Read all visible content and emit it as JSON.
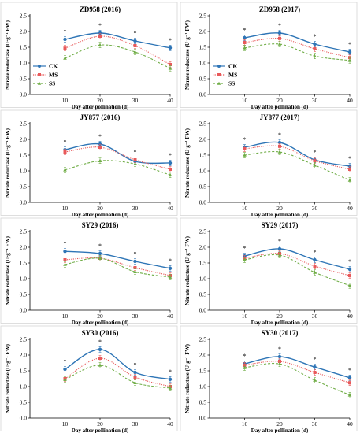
{
  "figure": {
    "colors": {
      "CK": "#2E75B6",
      "MS": "#E8595A",
      "SS": "#70AD47"
    }
  },
  "chart_data": [
    {
      "type": "line",
      "title": "ZD958 (2016)",
      "xlabel": "Day after pollination (d)",
      "ylabel": "Nitrate reductase (U·g⁻¹ FW)",
      "x": [
        10,
        20,
        30,
        40
      ],
      "xlim": [
        0,
        40
      ],
      "ylim": [
        0,
        2.5
      ],
      "yticks": [
        "0.0",
        "0.5",
        "1.0",
        "1.5",
        "2.0",
        "2.5"
      ],
      "xticks": [
        "10",
        "20",
        "30",
        "40"
      ],
      "grid": false,
      "legend": {
        "position": "left",
        "entries": [
          "CK",
          "MS",
          "SS"
        ]
      },
      "significance": [
        "*",
        "*",
        "*",
        "*"
      ],
      "series": [
        {
          "name": "CK",
          "values": [
            1.75,
            1.95,
            1.7,
            1.48
          ],
          "style": "solid",
          "marker": "circle"
        },
        {
          "name": "MS",
          "values": [
            1.47,
            1.85,
            1.55,
            0.95
          ],
          "style": "dotted",
          "marker": "square"
        },
        {
          "name": "SS",
          "values": [
            1.15,
            1.57,
            1.35,
            0.83
          ],
          "style": "dashed",
          "marker": "triangle"
        }
      ]
    },
    {
      "type": "line",
      "title": "ZD958 (2017)",
      "xlabel": "Day after pollination (d)",
      "ylabel": "Nitrate reductase (U·g⁻¹ FW)",
      "x": [
        10,
        20,
        30,
        40
      ],
      "xlim": [
        0,
        40
      ],
      "ylim": [
        0,
        2.5
      ],
      "yticks": [
        "0.0",
        "0.5",
        "1.0",
        "1.5",
        "2.0",
        "2.5"
      ],
      "xticks": [
        "10",
        "20",
        "30",
        "40"
      ],
      "grid": false,
      "legend": {
        "position": "left",
        "entries": [
          "CK",
          "MS",
          "SS"
        ]
      },
      "significance": [
        "*",
        "*",
        "*",
        "*"
      ],
      "series": [
        {
          "name": "CK",
          "values": [
            1.8,
            1.95,
            1.6,
            1.35
          ],
          "style": "solid",
          "marker": "circle"
        },
        {
          "name": "MS",
          "values": [
            1.65,
            1.78,
            1.45,
            1.17
          ],
          "style": "dotted",
          "marker": "square"
        },
        {
          "name": "SS",
          "values": [
            1.48,
            1.6,
            1.22,
            1.08
          ],
          "style": "dashed",
          "marker": "triangle"
        }
      ]
    },
    {
      "type": "line",
      "title": "JY877 (2016)",
      "xlabel": "Day after pollination (d)",
      "ylabel": "Nitrate reductase (U·g⁻¹ FW)",
      "x": [
        10,
        20,
        30,
        40
      ],
      "xlim": [
        0,
        40
      ],
      "ylim": [
        0,
        2.5
      ],
      "yticks": [
        "0.0",
        "0.5",
        "1.0",
        "1.5",
        "2.0",
        "2.5"
      ],
      "xticks": [
        "10",
        "20",
        "30",
        "40"
      ],
      "grid": false,
      "significance": [
        "*",
        "*",
        "*",
        "*"
      ],
      "series": [
        {
          "name": "CK",
          "values": [
            1.67,
            1.85,
            1.3,
            1.25
          ],
          "style": "solid",
          "marker": "circle"
        },
        {
          "name": "MS",
          "values": [
            1.6,
            1.75,
            1.35,
            1.05
          ],
          "style": "dotted",
          "marker": "square"
        },
        {
          "name": "SS",
          "values": [
            1.03,
            1.32,
            1.22,
            0.87
          ],
          "style": "dashed",
          "marker": "triangle"
        }
      ]
    },
    {
      "type": "line",
      "title": "JY877 (2017)",
      "xlabel": "Day after pollination (d)",
      "ylabel": "Nitrate reductase (U·g⁻¹ FW)",
      "x": [
        10,
        20,
        30,
        40
      ],
      "xlim": [
        0,
        40
      ],
      "ylim": [
        0,
        2.5
      ],
      "yticks": [
        "0.0",
        "0.5",
        "1.0",
        "1.5",
        "2.0",
        "2.5"
      ],
      "xticks": [
        "10",
        "20",
        "30",
        "40"
      ],
      "grid": false,
      "significance": [
        "*",
        "*",
        "*",
        "*"
      ],
      "series": [
        {
          "name": "CK",
          "values": [
            1.75,
            1.9,
            1.35,
            1.15
          ],
          "style": "solid",
          "marker": "circle"
        },
        {
          "name": "MS",
          "values": [
            1.7,
            1.78,
            1.32,
            1.05
          ],
          "style": "dotted",
          "marker": "square"
        },
        {
          "name": "SS",
          "values": [
            1.5,
            1.6,
            1.18,
            0.7
          ],
          "style": "dashed",
          "marker": "triangle"
        }
      ]
    },
    {
      "type": "line",
      "title": "SY29 (2016)",
      "xlabel": "Day after pollination (d)",
      "ylabel": "Nitrate reductase (U·g⁻¹ FW)",
      "x": [
        10,
        20,
        30,
        40
      ],
      "xlim": [
        0,
        40
      ],
      "ylim": [
        0,
        2.5
      ],
      "yticks": [
        "0.0",
        "0.5",
        "1.0",
        "1.5",
        "2.0",
        "2.5"
      ],
      "xticks": [
        "10",
        "20",
        "30",
        "40"
      ],
      "grid": false,
      "significance": [
        "*",
        "*",
        "*",
        "*"
      ],
      "series": [
        {
          "name": "CK",
          "values": [
            1.87,
            1.8,
            1.55,
            1.33
          ],
          "style": "solid",
          "marker": "circle"
        },
        {
          "name": "MS",
          "values": [
            1.6,
            1.65,
            1.35,
            1.1
          ],
          "style": "dotted",
          "marker": "square"
        },
        {
          "name": "SS",
          "values": [
            1.45,
            1.65,
            1.22,
            1.05
          ],
          "style": "dashed",
          "marker": "triangle"
        }
      ]
    },
    {
      "type": "line",
      "title": "SY29 (2017)",
      "xlabel": "Day after pollination (d)",
      "ylabel": "Nitrate reductase (U·g⁻¹ FW)",
      "x": [
        10,
        20,
        30,
        40
      ],
      "xlim": [
        0,
        40
      ],
      "ylim": [
        0,
        2.5
      ],
      "yticks": [
        "0.0",
        "0.5",
        "1.0",
        "1.5",
        "2.0",
        "2.5"
      ],
      "xticks": [
        "10",
        "20",
        "30",
        "40"
      ],
      "grid": false,
      "significance": [
        "*",
        "*",
        "*",
        "*"
      ],
      "series": [
        {
          "name": "CK",
          "values": [
            1.72,
            1.95,
            1.6,
            1.3
          ],
          "style": "solid",
          "marker": "circle"
        },
        {
          "name": "MS",
          "values": [
            1.65,
            1.8,
            1.4,
            1.1
          ],
          "style": "dotted",
          "marker": "square"
        },
        {
          "name": "SS",
          "values": [
            1.6,
            1.75,
            1.2,
            0.78
          ],
          "style": "dashed",
          "marker": "triangle"
        }
      ]
    },
    {
      "type": "line",
      "title": "SY30 (2016)",
      "xlabel": "Day after pollination (d)",
      "ylabel": "Nitrate reductase (U·g⁻¹ FW)",
      "x": [
        10,
        20,
        30,
        40
      ],
      "xlim": [
        0,
        40
      ],
      "ylim": [
        0,
        2.5
      ],
      "yticks": [
        "0.0",
        "0.5",
        "1.0",
        "1.5",
        "2.0",
        "2.5"
      ],
      "xticks": [
        "10",
        "20",
        "30",
        "40"
      ],
      "grid": false,
      "significance": [
        "*",
        "*",
        "*",
        "*"
      ],
      "series": [
        {
          "name": "CK",
          "values": [
            1.55,
            2.18,
            1.45,
            1.23
          ],
          "style": "solid",
          "marker": "circle"
        },
        {
          "name": "MS",
          "values": [
            1.25,
            1.9,
            1.3,
            1.0
          ],
          "style": "dotted",
          "marker": "square"
        },
        {
          "name": "SS",
          "values": [
            1.22,
            1.68,
            1.12,
            0.95
          ],
          "style": "dashed",
          "marker": "triangle"
        }
      ]
    },
    {
      "type": "line",
      "title": "SY30 (2017)",
      "xlabel": "Day after pollination (d)",
      "ylabel": "Nitrate reductase (U·g⁻¹ FW)",
      "x": [
        10,
        20,
        30,
        40
      ],
      "xlim": [
        0,
        40
      ],
      "ylim": [
        0,
        2.5
      ],
      "yticks": [
        "0.0",
        "0.5",
        "1.0",
        "1.5",
        "2.0",
        "2.5"
      ],
      "xticks": [
        "10",
        "20",
        "30",
        "40"
      ],
      "grid": false,
      "significance": [
        "*",
        "*",
        "*",
        "*"
      ],
      "series": [
        {
          "name": "CK",
          "values": [
            1.72,
            1.95,
            1.62,
            1.28
          ],
          "style": "solid",
          "marker": "circle"
        },
        {
          "name": "MS",
          "values": [
            1.68,
            1.8,
            1.45,
            1.12
          ],
          "style": "dotted",
          "marker": "square"
        },
        {
          "name": "SS",
          "values": [
            1.6,
            1.72,
            1.2,
            0.73
          ],
          "style": "dashed",
          "marker": "triangle"
        }
      ]
    }
  ]
}
